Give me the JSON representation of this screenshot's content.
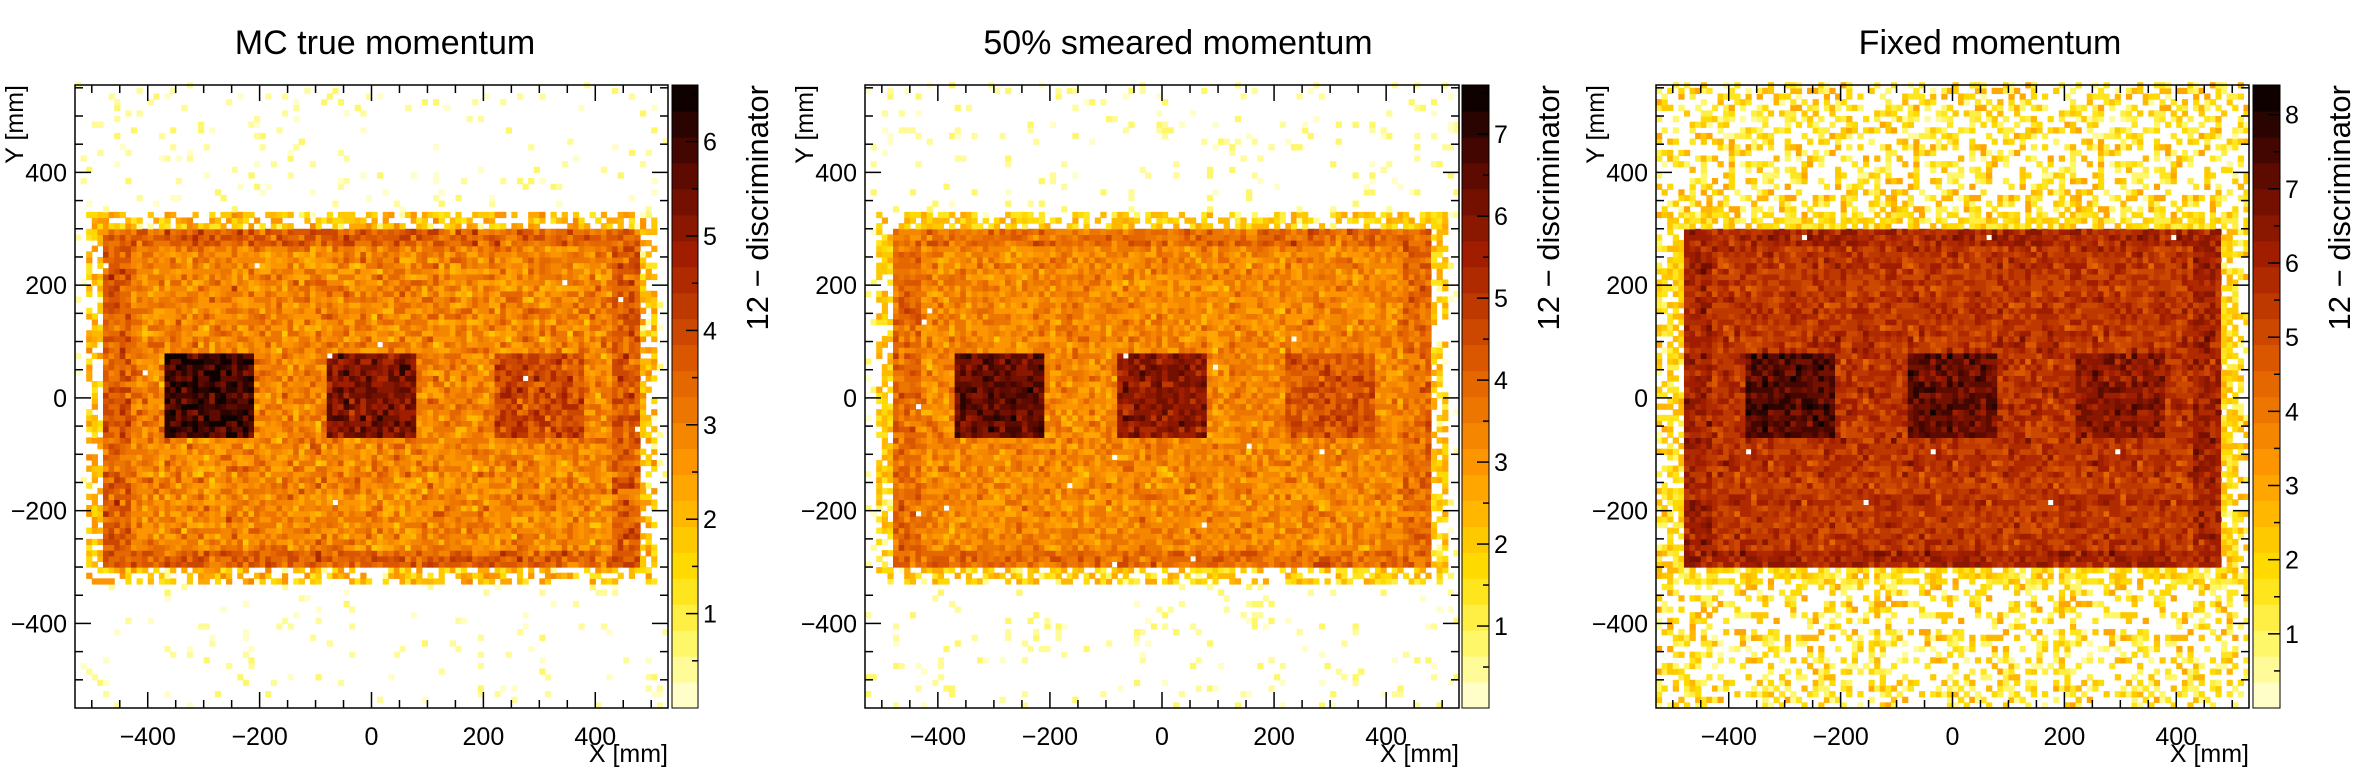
{
  "chart_data": [
    {
      "type": "heatmap",
      "title": "MC true momentum",
      "xlabel": "X [mm]",
      "ylabel": "Y [mm]",
      "zlabel": "12 − discriminator",
      "xlim": [
        -530,
        530
      ],
      "ylim": [
        -550,
        555
      ],
      "zlim": [
        0,
        6.6
      ],
      "xticks": [
        -400,
        -200,
        0,
        200,
        400
      ],
      "yticks": [
        -400,
        -200,
        0,
        200,
        400
      ],
      "zticks": [
        1,
        2,
        3,
        4,
        5,
        6
      ],
      "frame": {
        "x": [
          -480,
          480
        ],
        "y": [
          -300,
          300
        ],
        "width": 50,
        "level": 3.6
      },
      "interior_level": 2.9,
      "background_level": 0.4,
      "background_density": 0.05,
      "blocks": [
        {
          "x": [
            -370,
            -210
          ],
          "y": [
            -70,
            80
          ],
          "level": 6.0
        },
        {
          "x": [
            -80,
            80
          ],
          "y": [
            -70,
            80
          ],
          "level": 5.2
        },
        {
          "x": [
            220,
            380
          ],
          "y": [
            -70,
            80
          ],
          "level": 4.0
        }
      ]
    },
    {
      "type": "heatmap",
      "title": "50% smeared momentum",
      "xlabel": "X [mm]",
      "ylabel": "Y [mm]",
      "zlabel": "12 − discriminator",
      "xlim": [
        -530,
        530
      ],
      "ylim": [
        -550,
        555
      ],
      "zlim": [
        0,
        7.6
      ],
      "xticks": [
        -400,
        -200,
        0,
        200,
        400
      ],
      "yticks": [
        -400,
        -200,
        0,
        200,
        400
      ],
      "zticks": [
        1,
        2,
        3,
        4,
        5,
        6,
        7
      ],
      "frame": {
        "x": [
          -480,
          480
        ],
        "y": [
          -300,
          300
        ],
        "width": 50,
        "level": 3.9
      },
      "interior_level": 3.3,
      "background_level": 0.5,
      "background_density": 0.07,
      "blocks": [
        {
          "x": [
            -370,
            -210
          ],
          "y": [
            -70,
            80
          ],
          "level": 6.4
        },
        {
          "x": [
            -80,
            80
          ],
          "y": [
            -70,
            80
          ],
          "level": 5.8
        },
        {
          "x": [
            220,
            380
          ],
          "y": [
            -70,
            80
          ],
          "level": 4.4
        }
      ]
    },
    {
      "type": "heatmap",
      "title": "Fixed momentum",
      "xlabel": "X [mm]",
      "ylabel": "Y [mm]",
      "zlabel": "12 − discriminator",
      "xlim": [
        -530,
        530
      ],
      "ylim": [
        -550,
        555
      ],
      "zlim": [
        0,
        8.4
      ],
      "xticks": [
        -400,
        -200,
        0,
        200,
        400
      ],
      "yticks": [
        -400,
        -200,
        0,
        200,
        400
      ],
      "zticks": [
        1,
        2,
        3,
        4,
        5,
        6,
        7,
        8
      ],
      "frame": {
        "x": [
          -480,
          480
        ],
        "y": [
          -300,
          300
        ],
        "width": 50,
        "level": 6.0
      },
      "interior_level": 5.5,
      "background_level": 1.8,
      "background_density": 0.42,
      "blocks": [
        {
          "x": [
            -370,
            -210
          ],
          "y": [
            -70,
            80
          ],
          "level": 7.3
        },
        {
          "x": [
            -80,
            80
          ],
          "y": [
            -70,
            80
          ],
          "level": 7.0
        },
        {
          "x": [
            220,
            380
          ],
          "y": [
            -70,
            80
          ],
          "level": 6.4
        }
      ]
    }
  ]
}
